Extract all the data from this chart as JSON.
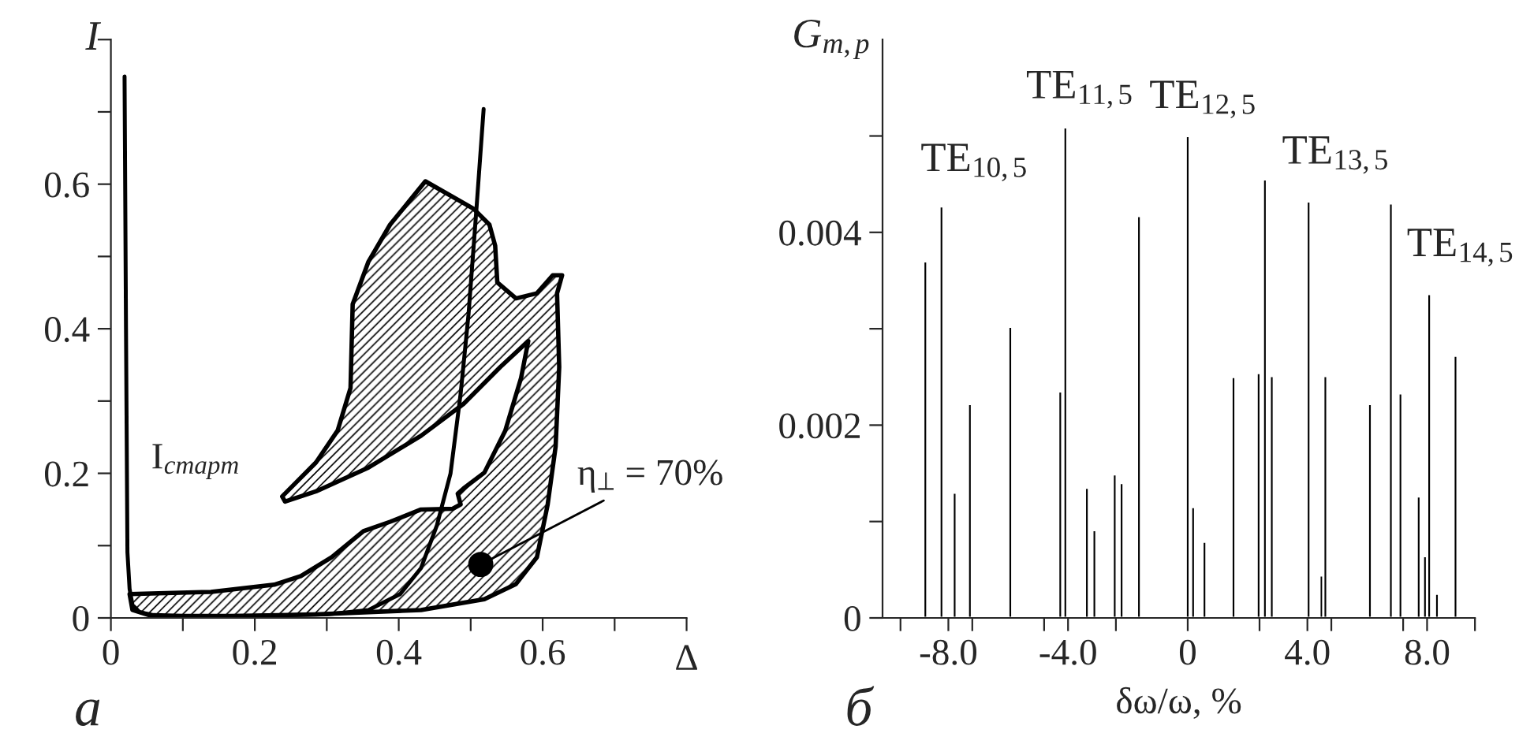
{
  "chart_data": [
    {
      "type": "line",
      "xlabel": "Δ",
      "ylabel": "I",
      "xlim": [
        0,
        0.8
      ],
      "ylim": [
        0,
        0.8
      ],
      "xticks": [
        0,
        {
          "value": 0.1,
          "label": null
        },
        0.2,
        {
          "value": 0.3,
          "label": null
        },
        0.4,
        {
          "value": 0.5,
          "label": null
        },
        0.6,
        {
          "value": 0.7,
          "label": null
        },
        {
          "value": 0.8,
          "label": null
        }
      ],
      "yticks": [
        0,
        {
          "value": 0.1,
          "label": null
        },
        0.2,
        {
          "value": 0.3,
          "label": null
        },
        0.4,
        {
          "value": 0.5,
          "label": null
        },
        0.6,
        {
          "value": 0.7,
          "label": null
        },
        {
          "value": 0.8,
          "label": null
        }
      ],
      "grid": false,
      "series": [
        {
          "type": "area",
          "color": "#000000",
          "x": [
            0.026,
            0.139,
            0.227,
            0.264,
            0.307,
            0.351,
            0.388,
            0.431,
            0.475,
            0.486,
            0.482,
            0.49,
            0.519,
            0.548,
            0.57,
            0.58,
            0.541,
            0.49,
            0.431,
            0.358,
            0.285,
            0.242,
            0.238,
            0.256,
            0.285,
            0.315,
            0.333,
            0.336,
            0.358,
            0.388,
            0.437,
            0.504,
            0.526,
            0.534,
            0.537,
            0.563,
            0.592,
            0.614,
            0.627,
            0.62,
            0.623,
            0.618,
            0.607,
            0.592,
            0.563,
            0.519,
            0.431,
            0.285,
            0.139,
            0.059,
            0.03
          ],
          "values": [
            0.033,
            0.036,
            0.046,
            0.058,
            0.084,
            0.12,
            0.133,
            0.15,
            0.151,
            0.157,
            0.172,
            0.179,
            0.201,
            0.259,
            0.332,
            0.383,
            0.347,
            0.296,
            0.252,
            0.208,
            0.175,
            0.161,
            0.168,
            0.186,
            0.215,
            0.259,
            0.318,
            0.434,
            0.493,
            0.544,
            0.604,
            0.566,
            0.544,
            0.515,
            0.464,
            0.442,
            0.449,
            0.474,
            0.474,
            0.449,
            0.347,
            0.237,
            0.157,
            0.084,
            0.047,
            0.026,
            0.011,
            0.005,
            0.002,
            0.002,
            0.011
          ]
        },
        {
          "type": "line",
          "name": "I$_{старт}$",
          "color": "#000000",
          "x": [
            0.019,
            0.021,
            0.023,
            0.026,
            0.03,
            0.04,
            0.059,
            0.1,
            0.2,
            0.3,
            0.358,
            0.402,
            0.431,
            0.453,
            0.472,
            0.486,
            0.497,
            0.508,
            0.518
          ],
          "values": [
            0.749,
            0.4,
            0.091,
            0.04,
            0.018,
            0.008,
            0.004,
            0.003,
            0.003,
            0.005,
            0.011,
            0.033,
            0.069,
            0.128,
            0.2,
            0.31,
            0.42,
            0.566,
            0.704
          ]
        },
        {
          "type": "scatter",
          "color": "#000000",
          "marker": "circle",
          "x": [
            0.514
          ],
          "values": [
            0.074
          ]
        }
      ],
      "annotations": [
        "а",
        {
          "text": "η$_{⊥}$ = 70%",
          "x": 0.514,
          "y": 0.074
        }
      ]
    },
    {
      "type": "bar",
      "xlabel": "δω/ω, %",
      "ylabel": "G$_{m,p}$",
      "xlim": [
        -10.2,
        9.6
      ],
      "ylim": [
        0,
        0.006
      ],
      "xticks": [
        {
          "value": -9.6,
          "label": null
        },
        {
          "value": -7.2,
          "label": null
        },
        {
          "value": -4.8,
          "label": null
        },
        {
          "value": -2.4,
          "label": null
        },
        {
          "value": 2.4,
          "label": null
        },
        {
          "value": 4.8,
          "label": null
        },
        {
          "value": 7.2,
          "label": null
        },
        {
          "value": 9.6,
          "label": null
        },
        {
          "value": -8,
          "label": "-8.0"
        },
        {
          "value": -4,
          "label": "-4.0"
        },
        0,
        {
          "value": 4,
          "label": "4.0"
        },
        {
          "value": 8,
          "label": "8.0"
        }
      ],
      "yticks": [
        0,
        {
          "value": 0.001,
          "label": null
        },
        0.002,
        {
          "value": 0.003,
          "label": null
        },
        0.004,
        {
          "value": 0.005,
          "label": null
        }
      ],
      "grid": false,
      "color": "#000000",
      "x": [
        -8.77,
        -8.23,
        -7.79,
        -7.28,
        -5.93,
        -4.26,
        -4.09,
        -3.37,
        -3.12,
        -2.44,
        -2.21,
        -1.63,
        0,
        0.18,
        0.56,
        1.53,
        2.37,
        2.58,
        2.81,
        4.04,
        4.47,
        4.6,
        6.09,
        6.79,
        7.11,
        7.72,
        7.93,
        8.07,
        8.33,
        8.95
      ],
      "values": [
        0.0037,
        0.00427,
        0.0013,
        0.00222,
        0.00302,
        0.00235,
        0.00509,
        0.00135,
        0.00091,
        0.00149,
        0.0014,
        0.00417,
        0.005,
        0.00115,
        0.00079,
        0.0025,
        0.00254,
        0.00455,
        0.00251,
        0.00432,
        0.00044,
        0.00251,
        0.00222,
        0.0043,
        0.00233,
        0.00126,
        0.00064,
        0.00336,
        0.00025,
        0.00272
      ],
      "annotations": [
        "б",
        "TE$_{10,5}$",
        "TE$_{11,5}$",
        "TE$_{12,5}$",
        "TE$_{13,5}$",
        "TE$_{14,5}$"
      ]
    }
  ]
}
